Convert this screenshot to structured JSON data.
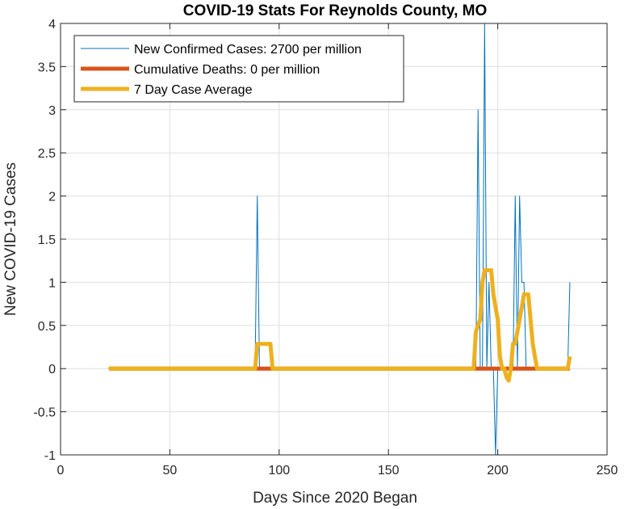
{
  "chart_data": {
    "type": "line",
    "title": "COVID-19 Stats For Reynolds County, MO",
    "xlabel": "Days Since 2020 Began",
    "ylabel": "New COVID-19 Cases",
    "xlim": [
      0,
      250
    ],
    "ylim": [
      -1,
      4
    ],
    "xticks": [
      0,
      50,
      100,
      150,
      200,
      250
    ],
    "yticks": [
      -1,
      -0.5,
      0,
      0.5,
      1,
      1.5,
      2,
      2.5,
      3,
      3.5,
      4
    ],
    "xtick_labels": [
      "0",
      "50",
      "100",
      "150",
      "200",
      "250"
    ],
    "ytick_labels": [
      "-1",
      "-0.5",
      "0",
      "0.5",
      "1",
      "1.5",
      "2",
      "2.5",
      "3",
      "3.5",
      "4"
    ],
    "grid": true,
    "legend_position": "top-left",
    "series": [
      {
        "name": "New Confirmed Cases: 2700 per million",
        "color": "#0072BD",
        "width": 1,
        "points": [
          [
            22,
            0
          ],
          [
            89,
            0
          ],
          [
            90,
            2
          ],
          [
            91,
            0
          ],
          [
            190,
            0
          ],
          [
            191,
            3
          ],
          [
            192,
            0
          ],
          [
            193,
            0
          ],
          [
            194,
            4
          ],
          [
            195,
            0
          ],
          [
            196,
            1
          ],
          [
            197,
            0
          ],
          [
            198,
            0
          ],
          [
            199,
            -1
          ],
          [
            200,
            0
          ],
          [
            207,
            0
          ],
          [
            208,
            2
          ],
          [
            209,
            0
          ],
          [
            210,
            2
          ],
          [
            211,
            1
          ],
          [
            212,
            1
          ],
          [
            213,
            0
          ],
          [
            232,
            0
          ],
          [
            233,
            1
          ]
        ]
      },
      {
        "name": "Cumulative Deaths: 0 per million",
        "color": "#D95319",
        "width": 5,
        "points": [
          [
            22,
            0
          ],
          [
            233,
            0
          ]
        ]
      },
      {
        "name": "7 Day Case Average",
        "color": "#EDB120",
        "width": 5,
        "points": [
          [
            22,
            0
          ],
          [
            89,
            0
          ],
          [
            90,
            0.286
          ],
          [
            96,
            0.286
          ],
          [
            97,
            0
          ],
          [
            189,
            0
          ],
          [
            190,
            0.43
          ],
          [
            192,
            0.57
          ],
          [
            193,
            1.0
          ],
          [
            194,
            1.14
          ],
          [
            197,
            1.14
          ],
          [
            198,
            0.86
          ],
          [
            199,
            0.71
          ],
          [
            200,
            0.57
          ],
          [
            201,
            0.14
          ],
          [
            202,
            0
          ],
          [
            203,
            0
          ],
          [
            204,
            -0.1
          ],
          [
            205,
            -0.14
          ],
          [
            206,
            0
          ],
          [
            207,
            0.29
          ],
          [
            208,
            0.29
          ],
          [
            209,
            0.43
          ],
          [
            210,
            0.57
          ],
          [
            211,
            0.71
          ],
          [
            212,
            0.86
          ],
          [
            213,
            0.86
          ],
          [
            214,
            0.86
          ],
          [
            215,
            0.57
          ],
          [
            216,
            0.29
          ],
          [
            217,
            0.14
          ],
          [
            218,
            0
          ],
          [
            232,
            0
          ],
          [
            233,
            0.14
          ]
        ]
      }
    ]
  }
}
